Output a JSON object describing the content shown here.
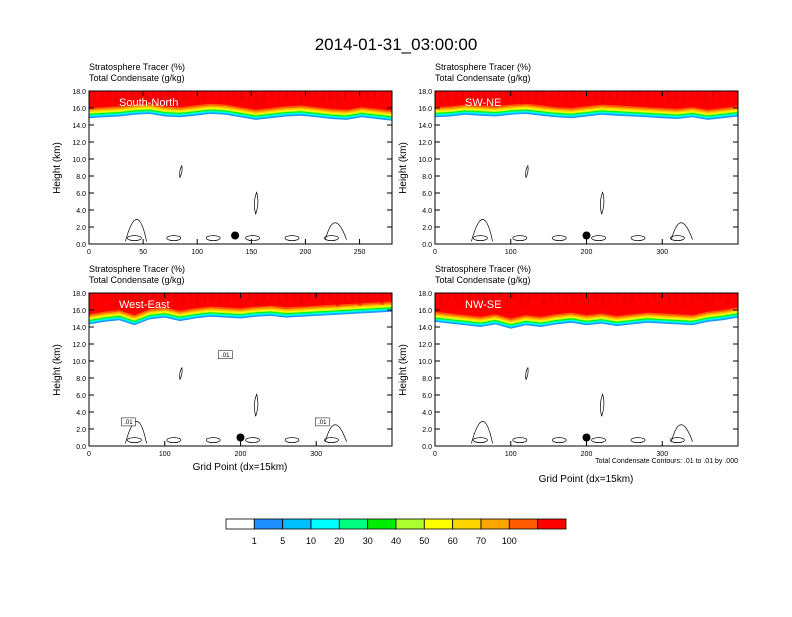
{
  "title": "2014-01-31_03:00:00",
  "panel_labels": {
    "line1": "Stratosphere Tracer   (%)",
    "line2": "Total Condensate   (g/kg)"
  },
  "ylabel": "Height (km)",
  "xlabel": "Grid Point (dx=15km)",
  "contour_note": "Total Condensate Contours: .01 to .01 by .000",
  "colorbar": {
    "labels": [
      "1",
      "5",
      "10",
      "20",
      "30",
      "40",
      "50",
      "60",
      "70",
      "100"
    ],
    "colors": [
      "#ffffff",
      "#1e90ff",
      "#00bfff",
      "#00ffff",
      "#00ff7f",
      "#00ee00",
      "#adff2f",
      "#ffff00",
      "#ffd700",
      "#ffa500",
      "#ff5a00",
      "#ff0000"
    ]
  },
  "chart_data": [
    {
      "type": "heatmap",
      "title": "South-North",
      "x_ticks": [
        0,
        50,
        100,
        150,
        200,
        250
      ],
      "xlim": [
        0,
        280
      ],
      "y_ticks": [
        "0.0",
        "2.0",
        "4.0",
        "6.0",
        "8.0",
        "10.0",
        "12.0",
        "14.0",
        "16.0",
        "18.0"
      ],
      "ylim": [
        0,
        18
      ],
      "tracer_base_km": [
        14.8,
        14.9,
        15.0,
        15.2,
        15.3,
        15.0,
        14.9,
        15.1,
        15.3,
        15.2,
        14.9,
        14.6,
        14.8,
        15.0,
        15.1,
        14.9,
        14.7,
        14.6,
        14.9,
        14.7,
        14.5
      ],
      "marker_x": 135,
      "marker_y_km": 1.0,
      "contour_labels": []
    },
    {
      "type": "heatmap",
      "title": "SW-NE",
      "x_ticks": [
        0,
        100,
        200,
        300
      ],
      "xlim": [
        0,
        400
      ],
      "y_ticks": [
        "0.0",
        "2.0",
        "4.0",
        "6.0",
        "8.0",
        "10.0",
        "12.0",
        "14.0",
        "16.0",
        "18.0"
      ],
      "ylim": [
        0,
        18
      ],
      "tracer_base_km": [
        14.9,
        15.0,
        15.2,
        15.1,
        15.0,
        15.2,
        15.3,
        15.1,
        14.9,
        14.8,
        15.0,
        15.2,
        15.1,
        15.0,
        14.9,
        14.8,
        14.7,
        14.9,
        14.6,
        14.8,
        15.0
      ],
      "marker_x": 200,
      "marker_y_km": 1.0,
      "contour_labels": []
    },
    {
      "type": "heatmap",
      "title": "West-East",
      "x_ticks": [
        0,
        100,
        200,
        300
      ],
      "xlim": [
        0,
        400
      ],
      "y_ticks": [
        "0.0",
        "2.0",
        "4.0",
        "6.0",
        "8.0",
        "10.0",
        "12.0",
        "14.0",
        "16.0",
        "18.0"
      ],
      "ylim": [
        0,
        18
      ],
      "tracer_base_km": [
        14.3,
        14.6,
        14.8,
        14.2,
        14.9,
        15.1,
        14.7,
        15.0,
        15.2,
        15.1,
        15.0,
        15.2,
        15.3,
        15.1,
        15.2,
        15.3,
        15.4,
        15.5,
        15.6,
        15.7,
        15.8
      ],
      "marker_x": 200,
      "marker_y_km": 1.0,
      "contour_labels": [
        ".01",
        ".01",
        ".01"
      ]
    },
    {
      "type": "heatmap",
      "title": "NW-SE",
      "x_ticks": [
        0,
        100,
        200,
        300
      ],
      "xlim": [
        0,
        400
      ],
      "y_ticks": [
        "0.0",
        "2.0",
        "4.0",
        "6.0",
        "8.0",
        "10.0",
        "12.0",
        "14.0",
        "16.0",
        "18.0"
      ],
      "ylim": [
        0,
        18
      ],
      "tracer_base_km": [
        14.6,
        14.4,
        14.2,
        14.0,
        14.3,
        13.8,
        14.2,
        14.0,
        14.3,
        14.5,
        14.2,
        14.4,
        14.1,
        14.3,
        14.5,
        14.4,
        14.3,
        14.2,
        14.6,
        14.8,
        15.1
      ],
      "marker_x": 200,
      "marker_y_km": 1.0,
      "contour_labels": []
    }
  ]
}
